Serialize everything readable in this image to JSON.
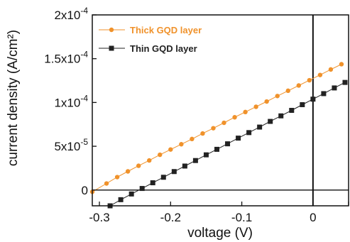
{
  "chart_data": {
    "type": "line",
    "xlabel": "voltage (V)",
    "ylabel": "current density (A/cm²)",
    "xlim": [
      -0.31,
      0.05
    ],
    "ylim": [
      -1.8e-05,
      0.0002
    ],
    "x_ticks": [
      {
        "value": -0.3,
        "label": "-0.3"
      },
      {
        "value": -0.2,
        "label": "-0.2"
      },
      {
        "value": -0.1,
        "label": "-0.1"
      },
      {
        "value": 0.0,
        "label": "0"
      },
      {
        "value": 0.05,
        "label": ""
      }
    ],
    "y_ticks": [
      {
        "value": 0,
        "label": "0",
        "mantissa": "0",
        "exp": ""
      },
      {
        "value": 5e-05,
        "label": "5x10-5",
        "mantissa": "5x10",
        "exp": "-5"
      },
      {
        "value": 0.0001,
        "label": "1x10-4",
        "mantissa": "1x10",
        "exp": "-4"
      },
      {
        "value": 0.00015,
        "label": "1.5x10-4",
        "mantissa": "1.5x10",
        "exp": "-4"
      },
      {
        "value": 0.0002,
        "label": "2x10-4",
        "mantissa": "2x10",
        "exp": "-4"
      }
    ],
    "reference_lines": {
      "x": 0,
      "y": 0
    },
    "grid": false,
    "legend_position": "top-left",
    "series": [
      {
        "name": "Thick GQD layer",
        "color": "#f0922b",
        "marker": "circle",
        "x": [
          -0.31,
          -0.29,
          -0.275,
          -0.26,
          -0.245,
          -0.23,
          -0.215,
          -0.2,
          -0.185,
          -0.17,
          -0.155,
          -0.14,
          -0.125,
          -0.11,
          -0.095,
          -0.08,
          -0.065,
          -0.05,
          -0.035,
          -0.02,
          -0.005,
          0.01,
          0.025,
          0.04
        ],
        "y": [
          -2e-06,
          7.5e-06,
          1.48e-05,
          2.13e-05,
          2.77e-05,
          3.38e-05,
          4.03e-05,
          4.63e-05,
          5.23e-05,
          5.83e-05,
          6.46e-05,
          7.06e-05,
          7.68e-05,
          8.31e-05,
          8.91e-05,
          9.51e-05,
          0.0001011,
          0.0001074,
          0.0001134,
          0.0001194,
          0.0001254,
          0.0001314,
          0.0001377,
          0.0001437
        ]
      },
      {
        "name": "Thin GQD layer",
        "color": "#222222",
        "marker": "square",
        "x": [
          -0.285,
          -0.27,
          -0.255,
          -0.24,
          -0.225,
          -0.21,
          -0.195,
          -0.18,
          -0.165,
          -0.15,
          -0.135,
          -0.12,
          -0.105,
          -0.09,
          -0.075,
          -0.06,
          -0.045,
          -0.03,
          -0.015,
          0.0,
          0.015,
          0.03,
          0.045
        ],
        "y": [
          -1.8e-05,
          -1.1e-05,
          -4.5e-06,
          1.8e-06,
          8.3e-06,
          1.46e-05,
          2.11e-05,
          2.74e-05,
          3.37e-05,
          4.02e-05,
          4.65e-05,
          5.28e-05,
          5.93e-05,
          6.56e-05,
          7.19e-05,
          7.84e-05,
          8.47e-05,
          9.1e-05,
          9.75e-05,
          0.0001038,
          0.0001101,
          0.0001166,
          0.0001229
        ]
      }
    ]
  }
}
